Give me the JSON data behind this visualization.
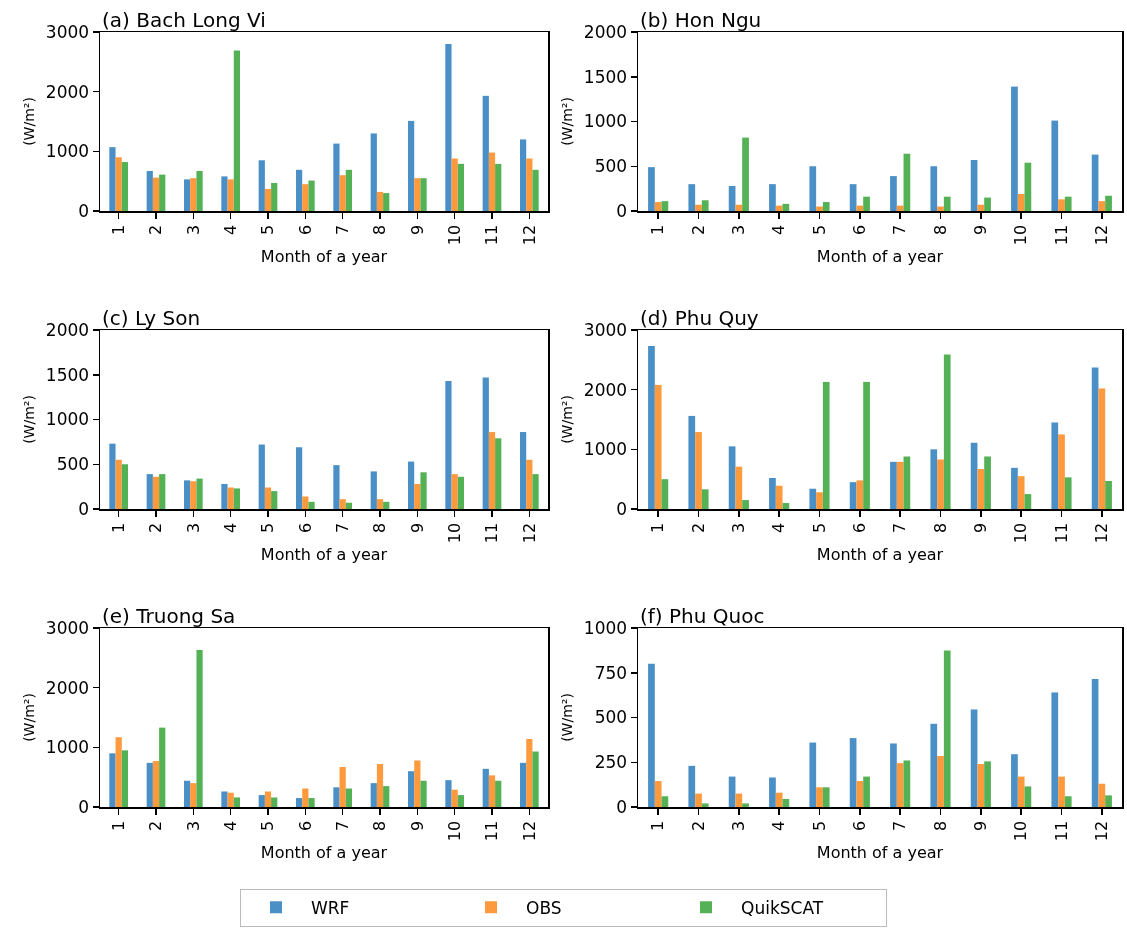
{
  "chart_data": [
    {
      "type": "bar",
      "title": "(a) Bach Long Vi",
      "xlabel": "Month of a year",
      "ylabel": "(W/m²)",
      "categories": [
        "1",
        "2",
        "3",
        "4",
        "5",
        "6",
        "7",
        "8",
        "9",
        "10",
        "11",
        "12"
      ],
      "ylim": [
        0,
        3000
      ],
      "yticks": [
        0,
        1000,
        2000,
        3000
      ],
      "legend": "bottom",
      "series": [
        {
          "name": "WRF",
          "color": "#4a90c6",
          "values": [
            1070,
            670,
            530,
            580,
            850,
            690,
            1130,
            1300,
            1510,
            2800,
            1930,
            1200
          ]
        },
        {
          "name": "OBS",
          "color": "#fd9a3e",
          "values": [
            900,
            560,
            550,
            530,
            370,
            450,
            600,
            320,
            550,
            880,
            980,
            880
          ]
        },
        {
          "name": "QuikSCAT",
          "color": "#55b155",
          "values": [
            820,
            610,
            670,
            2690,
            470,
            510,
            690,
            300,
            550,
            790,
            790,
            690
          ]
        }
      ]
    },
    {
      "type": "bar",
      "title": "(b) Hon Ngu",
      "xlabel": "Month of a year",
      "ylabel": "(W/m²)",
      "categories": [
        "1",
        "2",
        "3",
        "4",
        "5",
        "6",
        "7",
        "8",
        "9",
        "10",
        "11",
        "12"
      ],
      "ylim": [
        0,
        2000
      ],
      "yticks": [
        0,
        500,
        1000,
        1500,
        2000
      ],
      "series": [
        {
          "color": "#4a90c6",
          "values": [
            490,
            300,
            280,
            300,
            500,
            300,
            390,
            500,
            570,
            1390,
            1010,
            630
          ]
        },
        {
          "color": "#fd9a3e",
          "values": [
            100,
            70,
            70,
            60,
            50,
            60,
            60,
            50,
            70,
            190,
            130,
            110
          ]
        },
        {
          "color": "#55b155",
          "values": [
            110,
            120,
            820,
            80,
            100,
            160,
            640,
            160,
            150,
            540,
            160,
            170
          ]
        }
      ]
    },
    {
      "type": "bar",
      "title": "(c) Ly Son",
      "xlabel": "Month of a year",
      "ylabel": "(W/m²)",
      "categories": [
        "1",
        "2",
        "3",
        "4",
        "5",
        "6",
        "7",
        "8",
        "9",
        "10",
        "11",
        "12"
      ],
      "ylim": [
        0,
        2000
      ],
      "yticks": [
        0,
        500,
        1000,
        1500,
        2000
      ],
      "series": [
        {
          "color": "#4a90c6",
          "values": [
            730,
            390,
            320,
            280,
            720,
            690,
            490,
            420,
            530,
            1430,
            1470,
            860
          ]
        },
        {
          "color": "#fd9a3e",
          "values": [
            550,
            360,
            310,
            240,
            240,
            140,
            110,
            110,
            280,
            390,
            860,
            550
          ]
        },
        {
          "color": "#55b155",
          "values": [
            500,
            390,
            340,
            230,
            200,
            80,
            70,
            80,
            410,
            360,
            790,
            390
          ]
        }
      ]
    },
    {
      "type": "bar",
      "title": "(d) Phu Quy",
      "xlabel": "Month of a year",
      "ylabel": "(W/m²)",
      "categories": [
        "1",
        "2",
        "3",
        "4",
        "5",
        "6",
        "7",
        "8",
        "9",
        "10",
        "11",
        "12"
      ],
      "ylim": [
        0,
        3000
      ],
      "yticks": [
        0,
        1000,
        2000,
        3000
      ],
      "series": [
        {
          "color": "#4a90c6",
          "values": [
            2730,
            1560,
            1050,
            520,
            340,
            450,
            790,
            1000,
            1110,
            690,
            1450,
            2370
          ]
        },
        {
          "color": "#fd9a3e",
          "values": [
            2080,
            1290,
            710,
            390,
            280,
            480,
            790,
            830,
            670,
            550,
            1250,
            2020
          ]
        },
        {
          "color": "#55b155",
          "values": [
            500,
            330,
            150,
            100,
            2130,
            2130,
            880,
            2590,
            880,
            250,
            530,
            470
          ]
        }
      ]
    },
    {
      "type": "bar",
      "title": "(e) Truong Sa",
      "xlabel": "Month of a year",
      "ylabel": "(W/m²)",
      "categories": [
        "1",
        "2",
        "3",
        "4",
        "5",
        "6",
        "7",
        "8",
        "9",
        "10",
        "11",
        "12"
      ],
      "ylim": [
        0,
        3000
      ],
      "yticks": [
        0,
        1000,
        2000,
        3000
      ],
      "series": [
        {
          "color": "#4a90c6",
          "values": [
            900,
            740,
            440,
            260,
            200,
            150,
            330,
            400,
            600,
            450,
            640,
            740
          ]
        },
        {
          "color": "#fd9a3e",
          "values": [
            1170,
            770,
            400,
            240,
            260,
            310,
            670,
            720,
            780,
            290,
            530,
            1140
          ]
        },
        {
          "color": "#55b155",
          "values": [
            950,
            1330,
            2630,
            160,
            160,
            150,
            310,
            350,
            440,
            200,
            440,
            930
          ]
        }
      ]
    },
    {
      "type": "bar",
      "title": "(f) Phu Quoc",
      "xlabel": "Month of a year",
      "ylabel": "(W/m²)",
      "categories": [
        "1",
        "2",
        "3",
        "4",
        "5",
        "6",
        "7",
        "8",
        "9",
        "10",
        "11",
        "12"
      ],
      "ylim": [
        0,
        1000
      ],
      "yticks": [
        0,
        250,
        500,
        750,
        1000
      ],
      "series": [
        {
          "color": "#4a90c6",
          "values": [
            800,
            230,
            170,
            165,
            360,
            385,
            355,
            465,
            545,
            295,
            640,
            715
          ]
        },
        {
          "color": "#fd9a3e",
          "values": [
            145,
            75,
            75,
            80,
            110,
            145,
            245,
            285,
            240,
            170,
            170,
            130
          ]
        },
        {
          "color": "#55b155",
          "values": [
            60,
            20,
            20,
            45,
            110,
            170,
            260,
            875,
            255,
            115,
            60,
            65
          ]
        }
      ]
    }
  ]
}
